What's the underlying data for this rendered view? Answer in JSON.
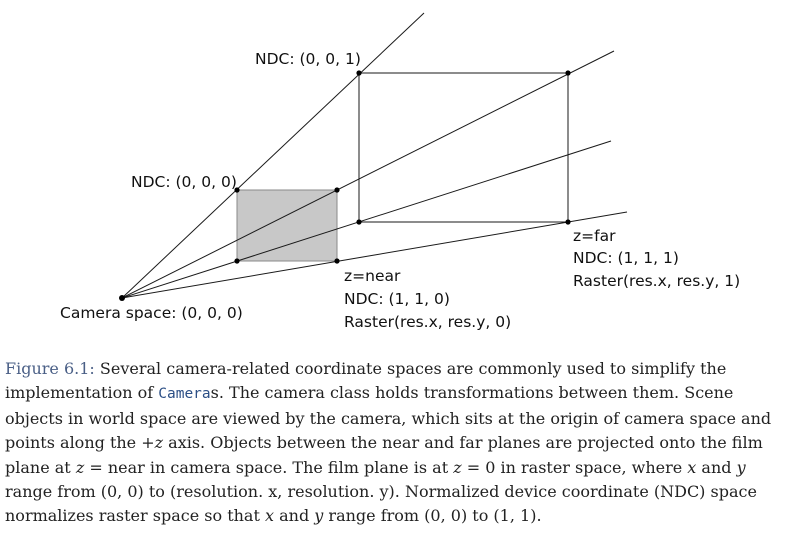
{
  "diagram": {
    "labels": {
      "ndc_001": "NDC: (0, 0, 1)",
      "ndc_000": "NDC: (0, 0, 0)",
      "camera_space": "Camera space: (0, 0, 0)",
      "near_z": "z=near",
      "near_ndc": "NDC: (1, 1, 0)",
      "near_raster": "Raster(res.x, res.y, 0)",
      "far_z": "z=far",
      "far_ndc": "NDC: (1, 1, 1)",
      "far_raster": "Raster(res.x, res.y, 1)"
    },
    "colors": {
      "line": "#1a1a1a",
      "near_plane_fill": "#c8c8c8",
      "near_plane_stroke": "#8a8a8a"
    }
  },
  "caption": {
    "figure_ref": "Figure 6.1:",
    "t1": " Several camera-related coordinate spaces are commonly used to simplify the implementation of ",
    "code_cameras": "Camera",
    "t2": "s. The camera class holds transformations between them. Scene objects in world space are viewed by the camera, which sits at the origin of camera space and points along the ",
    "plus_sign": "+",
    "z1": "z",
    "t3": " axis. Objects between the near and far planes are projected onto the film plane at ",
    "z2": "z",
    "eq1": " = ",
    "near_word": "near",
    "t4": " in camera space. The film plane is at ",
    "z3": "z",
    "eq2": " = 0",
    "t5": " in raster space, where ",
    "x1": "x",
    "and1": " and ",
    "y1": "y",
    "t6": " range from ",
    "zero_pair1": "(0, 0)",
    "to1": " to ",
    "res_pair": "(resolution. x, resolution. y)",
    "t7": ". Normalized device coordinate (NDC) space normalizes raster space so that ",
    "x2": "x",
    "and2": " and ",
    "y2": "y",
    "t8": " range from ",
    "zero_pair2": "(0, 0)",
    "to2": " to ",
    "one_pair": "(1, 1)",
    "t9": "."
  }
}
